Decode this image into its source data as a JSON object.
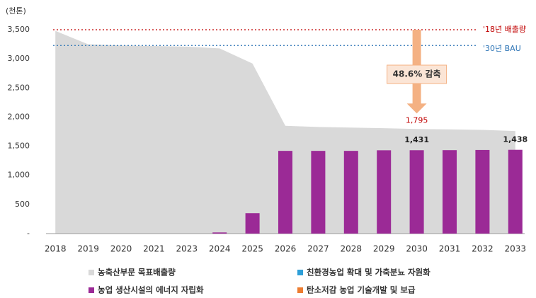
{
  "chart_data": {
    "type": "bar",
    "y_label": "(천톤)",
    "categories": [
      "2018",
      "2019",
      "2020",
      "2021",
      "2023",
      "2024",
      "2025",
      "2026",
      "2027",
      "2028",
      "2029",
      "2030",
      "2031",
      "2032",
      "2033"
    ],
    "ylim": [
      0,
      3500
    ],
    "yticks": [
      {
        "value": 0,
        "label": "-"
      },
      500,
      {
        "value": 1000,
        "label": "1,000"
      },
      {
        "value": 1500,
        "label": "1,500"
      },
      {
        "value": 2000,
        "label": "2,000"
      },
      {
        "value": 2500,
        "label": "2,500"
      },
      {
        "value": 3000,
        "label": "3,000"
      },
      {
        "value": 3500,
        "label": "3,500"
      }
    ],
    "series": [
      {
        "name": "농축산부문 목표배출량",
        "type": "area",
        "color": "#d9d9d9",
        "values": [
          3480,
          3250,
          3230,
          3220,
          3210,
          3180,
          2920,
          1850,
          1830,
          1820,
          1810,
          1795,
          1790,
          1780,
          1760
        ],
        "value_labels": [
          null,
          null,
          null,
          null,
          null,
          null,
          null,
          null,
          null,
          null,
          null,
          "1,795",
          null,
          null,
          null
        ]
      },
      {
        "name": "친환경농업 확대 및 가축분뇨 자원화",
        "type": "bar",
        "color": "#2e9fd8"
      },
      {
        "name": "농업 생산시설의 에너지 자립화",
        "type": "bar",
        "color": "#9b2a96",
        "values": [
          0,
          0,
          0,
          0,
          0,
          20,
          350,
          1420,
          1420,
          1420,
          1430,
          1431,
          1432,
          1435,
          1438
        ],
        "value_labels": [
          null,
          null,
          null,
          null,
          null,
          null,
          null,
          null,
          null,
          null,
          null,
          "1,431",
          null,
          null,
          "1,438"
        ]
      },
      {
        "name": "탄소저감 농업 기술개발 및 보급",
        "type": "bar",
        "color": "#ed7d31"
      }
    ],
    "reference_lines": [
      {
        "label": "'18년 배출량",
        "value": 3500,
        "color": "#c00000"
      },
      {
        "label": "'30년 BAU",
        "value": 3230,
        "color": "#2e75b6"
      }
    ],
    "annotation": "48.6% 감축"
  }
}
